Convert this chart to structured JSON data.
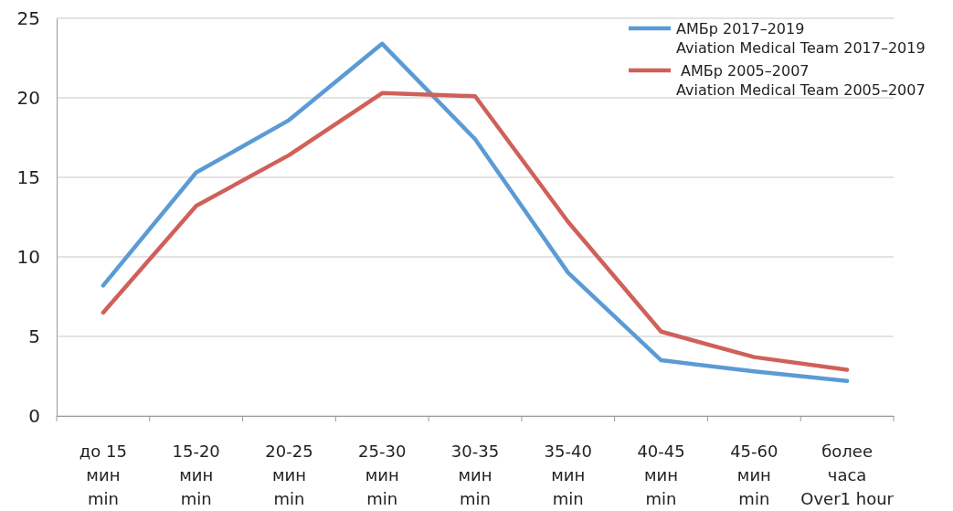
{
  "chart_data": {
    "type": "line",
    "categories": [
      "до 15\nмин\nmin",
      "15-20\nмин\nmin",
      "20-25\nмин\nmin",
      "25-30\nмин\nmin",
      "30-35\nмин\nmin",
      "35-40\nмин\nmin",
      "40-45\nмин\nmin",
      "45-60\nмин\nmin",
      "более\nчаса\nOver1 hour"
    ],
    "series": [
      {
        "name": "АМБр 2017–2019\nAviation Medical Team 2017–2019",
        "color": "#5b9bd5",
        "values": [
          8.2,
          15.3,
          18.6,
          23.4,
          17.4,
          9.0,
          3.5,
          2.8,
          2.2
        ]
      },
      {
        "name": " АМБр 2005–2007\nAviation Medical Team 2005–2007",
        "color": "#d0605a",
        "values": [
          6.5,
          13.2,
          16.4,
          20.3,
          20.1,
          12.2,
          5.3,
          3.7,
          2.9
        ]
      }
    ],
    "ylim": [
      0,
      25
    ],
    "yticks": [
      0,
      5,
      10,
      15,
      20,
      25
    ],
    "grid": "y",
    "legend": "top right",
    "marker": "none",
    "line_style": "solid"
  }
}
